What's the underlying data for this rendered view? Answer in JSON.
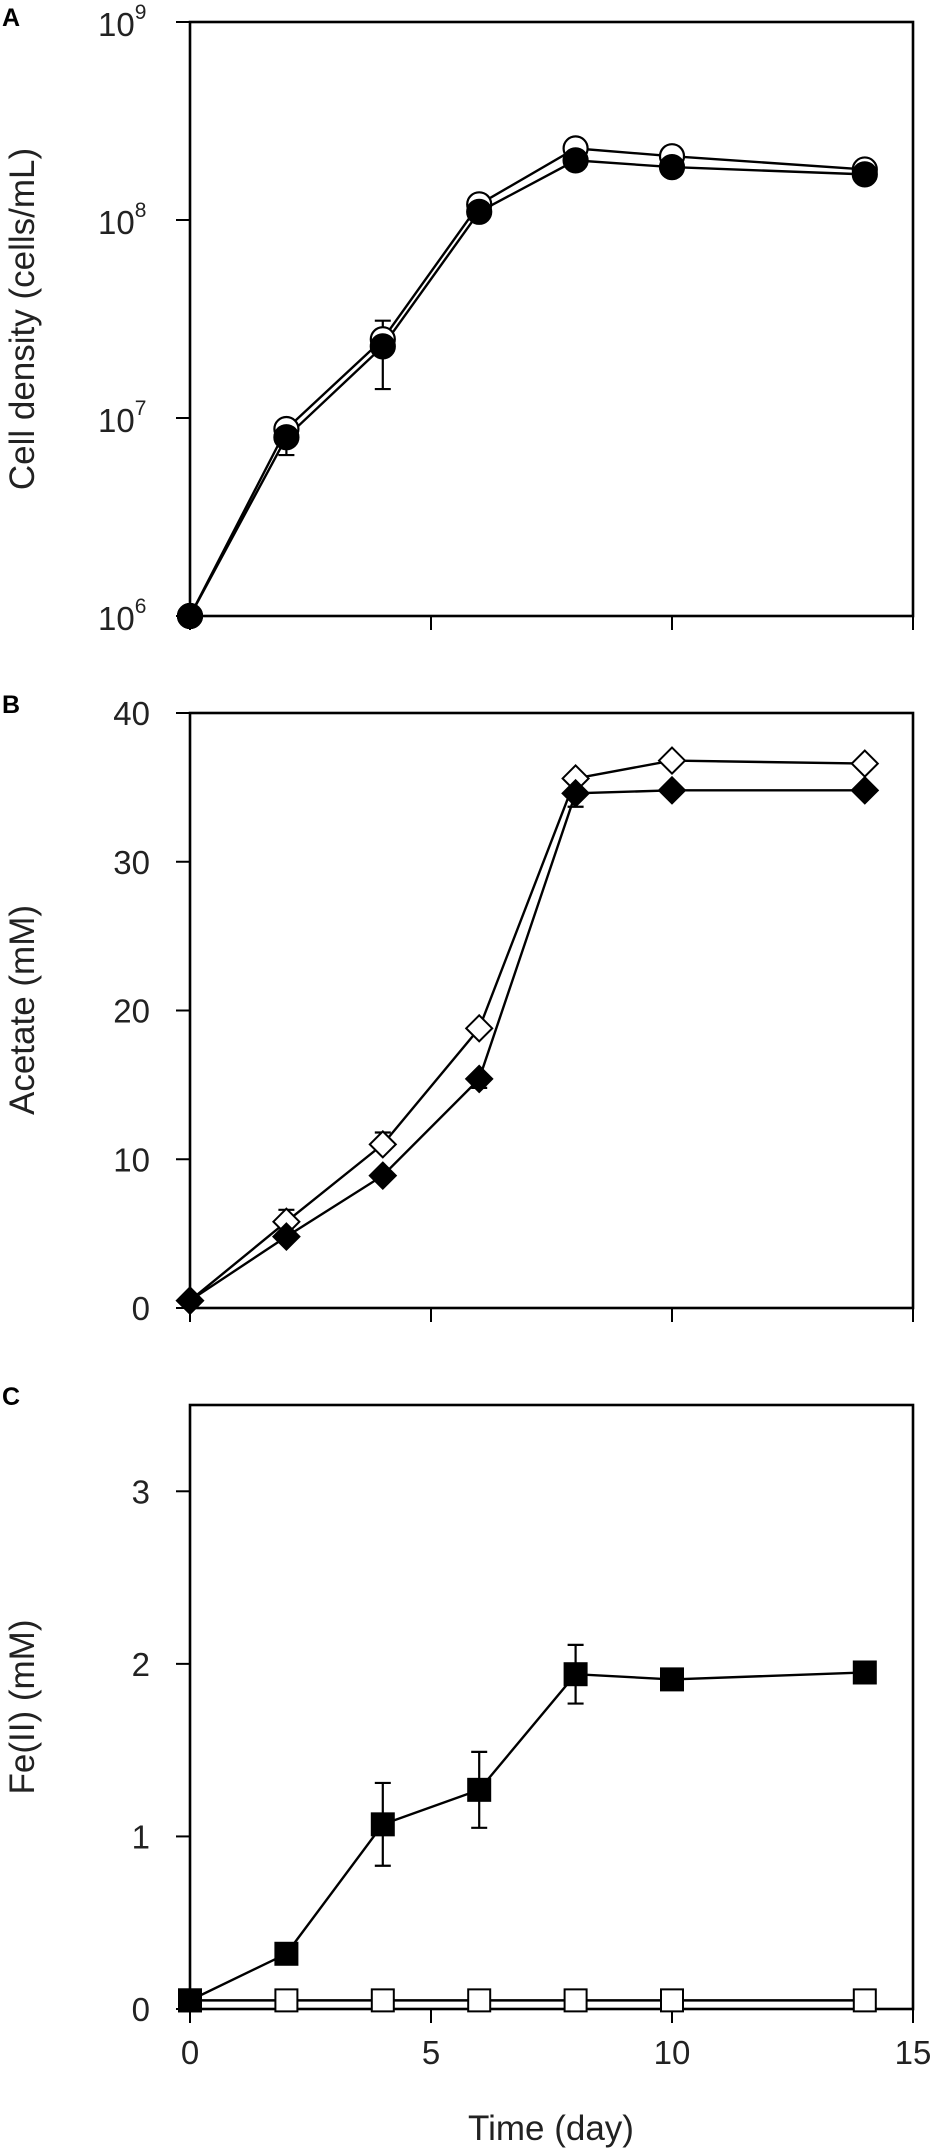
{
  "chart_data": [
    {
      "panel": "A",
      "type": "line",
      "ylabel": "Cell density (cells/mL)",
      "yscale": "log",
      "ylim": [
        1000000,
        1000000000
      ],
      "xlim": [
        0,
        15
      ],
      "yticks": [
        {
          "base": "10",
          "exp": "6",
          "value": 1000000
        },
        {
          "base": "10",
          "exp": "7",
          "value": 10000000
        },
        {
          "base": "10",
          "exp": "8",
          "value": 100000000
        },
        {
          "base": "10",
          "exp": "9",
          "value": 1000000000
        }
      ],
      "series": [
        {
          "marker": "circle",
          "filled": false,
          "x": [
            0,
            2,
            4,
            6,
            8,
            10,
            14
          ],
          "y": [
            1000000,
            8800000,
            25000000,
            120000000,
            230000000,
            210000000,
            180000000
          ],
          "err_up": [
            0,
            0,
            0,
            0,
            0,
            0,
            0
          ],
          "err_down": [
            0,
            0,
            0,
            0,
            0,
            0,
            0
          ]
        },
        {
          "marker": "circle",
          "filled": true,
          "x": [
            0,
            2,
            4,
            6,
            8,
            10,
            14
          ],
          "y": [
            1000000,
            8000000,
            23000000,
            110000000,
            200000000,
            185000000,
            170000000
          ],
          "err_up": [
            0,
            0,
            8000000,
            0,
            0,
            0,
            0
          ],
          "err_down": [
            0,
            1500000,
            9000000,
            0,
            0,
            0,
            0
          ]
        }
      ]
    },
    {
      "panel": "B",
      "type": "line",
      "ylabel": "Acetate (mM)",
      "ylim": [
        0,
        40
      ],
      "xlim": [
        0,
        15
      ],
      "yticks": [
        "0",
        "10",
        "20",
        "30",
        "40"
      ],
      "series": [
        {
          "marker": "diamond",
          "filled": false,
          "x": [
            0,
            2,
            4,
            6,
            8,
            10,
            14
          ],
          "y": [
            0.5,
            5.8,
            11,
            18.8,
            35.6,
            36.8,
            36.6
          ],
          "err_up": [
            0,
            0.8,
            0.8,
            0,
            0,
            0,
            0
          ],
          "err_down": [
            0,
            0,
            0,
            0,
            0,
            0,
            0
          ]
        },
        {
          "marker": "diamond",
          "filled": true,
          "x": [
            0,
            2,
            4,
            6,
            8,
            10,
            14
          ],
          "y": [
            0.5,
            4.8,
            8.9,
            15.4,
            34.6,
            34.8,
            34.8
          ],
          "err_up": [
            0,
            0,
            0,
            0,
            0,
            0,
            0
          ],
          "err_down": [
            0,
            0,
            0,
            0.6,
            0.9,
            0,
            0
          ]
        }
      ]
    },
    {
      "panel": "C",
      "type": "line",
      "ylabel": "Fe(II) (mM)",
      "xlabel": "Time (day)",
      "ylim": [
        0,
        3.5
      ],
      "xlim": [
        0,
        15
      ],
      "yticks": [
        "0",
        "1",
        "2",
        "3"
      ],
      "xticks": [
        "0",
        "5",
        "10",
        "15"
      ],
      "series": [
        {
          "marker": "square",
          "filled": true,
          "x": [
            0,
            2,
            4,
            6,
            8,
            10,
            14
          ],
          "y": [
            0.05,
            0.32,
            1.07,
            1.27,
            1.94,
            1.91,
            1.95
          ],
          "err_up": [
            0,
            0,
            0.24,
            0.22,
            0.17,
            0,
            0
          ],
          "err_down": [
            0,
            0,
            0.24,
            0.22,
            0.17,
            0,
            0
          ]
        },
        {
          "marker": "square",
          "filled": false,
          "x": [
            0,
            2,
            4,
            6,
            8,
            10,
            14
          ],
          "y": [
            0.05,
            0.05,
            0.05,
            0.05,
            0.05,
            0.05,
            0.05
          ],
          "err_up": [
            0,
            0,
            0,
            0,
            0,
            0,
            0
          ],
          "err_down": [
            0,
            0,
            0,
            0,
            0,
            0,
            0
          ]
        }
      ]
    }
  ]
}
